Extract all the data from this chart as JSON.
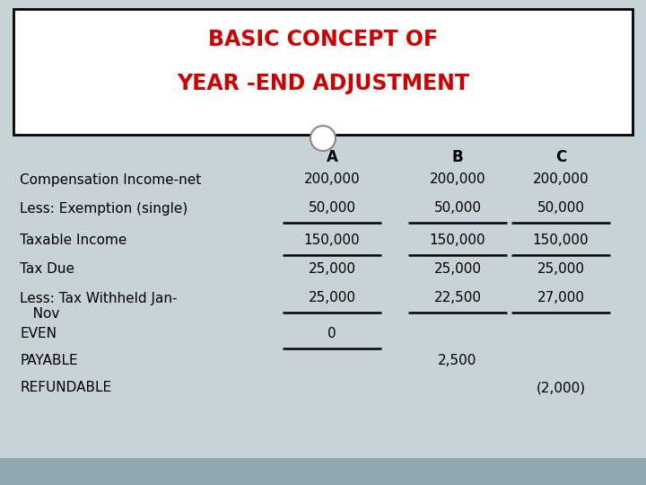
{
  "title_line1": "BASIC CONCEPT OF",
  "title_line2": "YEAR -END ADJUSTMENT",
  "title_color": "#CC0000",
  "title_bg": "#FFFFFF",
  "body_bg": "#C8D3D8",
  "col_headers": [
    "A",
    "B",
    "C"
  ],
  "row_labels": [
    "Compensation Income-net",
    "Less: Exemption (single)",
    "Taxable Income",
    "Tax Due",
    "Less: Tax Withheld Jan-",
    "   Nov",
    "EVEN",
    "PAYABLE",
    "REFUNDABLE"
  ],
  "col_A": [
    "200,000",
    "50,000",
    "150,000",
    "25,000",
    "25,000",
    "",
    "0",
    "",
    ""
  ],
  "col_B": [
    "200,000",
    "50,000",
    "150,000",
    "25,000",
    "22,500",
    "",
    "",
    "2,500",
    ""
  ],
  "col_C": [
    "200,000",
    "50,000",
    "150,000",
    "25,000",
    "27,000",
    "",
    "",
    "",
    "(2,000)"
  ],
  "underline_rows_A": [
    1,
    2,
    4,
    6
  ],
  "underline_rows_B": [
    1,
    2,
    4
  ],
  "underline_rows_C": [
    1,
    2,
    4
  ],
  "fig_bg": "#B8C8CE",
  "bottom_strip_color": "#8FA8B0",
  "text_color": "#000000",
  "font_size_title": 17,
  "font_size_body": 11,
  "font_size_header": 12
}
